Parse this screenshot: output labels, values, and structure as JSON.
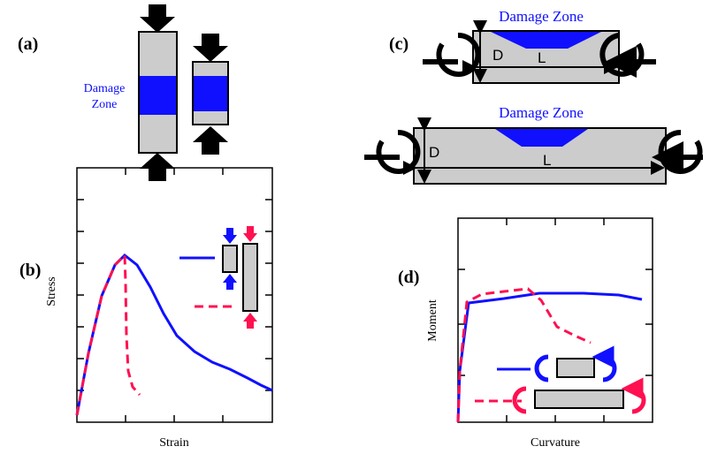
{
  "panels": [
    {
      "label": "(a)",
      "damage_zone": [
        "Damage",
        "Zone"
      ]
    },
    {
      "label": "(b)",
      "y_label": "Stress",
      "x_label": "Strain"
    },
    {
      "label": "(c)",
      "beams": [
        {
          "zone": "Damage Zone",
          "depth": "D",
          "length": "L"
        },
        {
          "zone": "Damage Zone",
          "depth": "D",
          "length": "L"
        }
      ]
    },
    {
      "label": "(d)",
      "y_label": "Moment",
      "x_label": "Curvature"
    }
  ]
}
